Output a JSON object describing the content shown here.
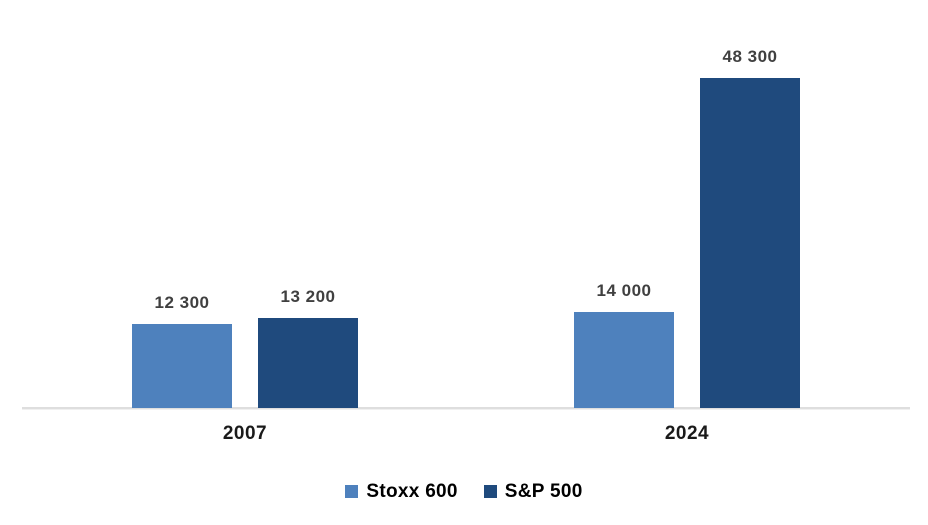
{
  "chart_data": {
    "type": "bar",
    "title": "",
    "xlabel": "",
    "ylabel": "",
    "categories": [
      "2007",
      "2024"
    ],
    "series": [
      {
        "name": "Stoxx 600",
        "color": "#4E81BD",
        "values": [
          12300,
          14000
        ],
        "labels": [
          "12 300",
          "14 000"
        ]
      },
      {
        "name": "S&P 500",
        "color": "#1F4A7D",
        "values": [
          13200,
          48300
        ],
        "labels": [
          "13 200",
          "48 300"
        ]
      }
    ],
    "ylim": [
      0,
      50000
    ],
    "grid": false,
    "legend_position": "bottom",
    "axis_line_color": "#DEDEDE",
    "data_label_color": "#404040"
  }
}
